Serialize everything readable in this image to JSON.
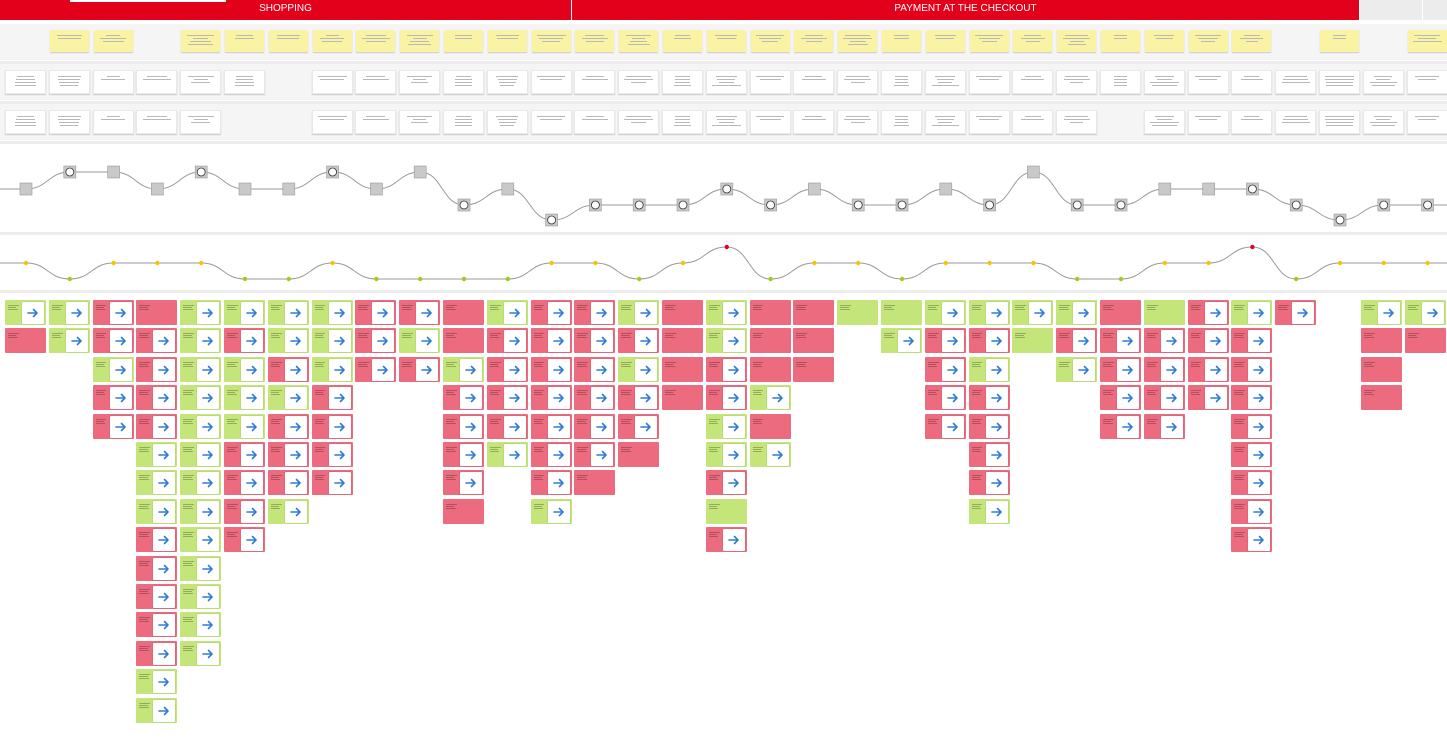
{
  "stages": {
    "shopping": "SHOPPING",
    "payment": "PAYMENT AT THE CHECKOUT"
  },
  "colors": {
    "brand_red": "#e2001a",
    "sticky_yellow": "#fbf3a4",
    "positive_green": "#c4e57a",
    "negative_red": "#ec6b7f",
    "arrow_blue": "#2f7bd8",
    "curve_grey": "#9a9a9a",
    "dot_yellow": "#f5c400",
    "dot_green": "#9ccc1c",
    "dot_red": "#e2001a"
  },
  "icons": {
    "link": "arrow-right-icon",
    "emotion": "face-icon"
  }
}
